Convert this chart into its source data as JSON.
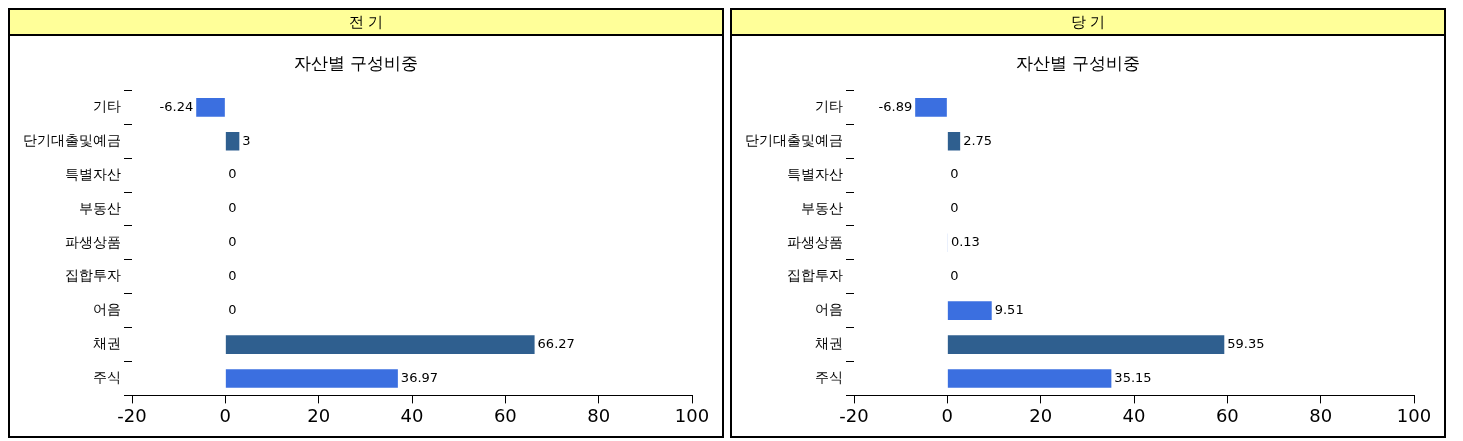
{
  "chart_data": [
    {
      "type": "bar",
      "orientation": "horizontal",
      "title": "전 기",
      "subtitle": "자산별 구성비중",
      "categories": [
        "기타",
        "단기대출및예금",
        "특별자산",
        "부동산",
        "파생상품",
        "집합투자",
        "어음",
        "채권",
        "주식"
      ],
      "values": [
        -6.24,
        3,
        0,
        0,
        0,
        0,
        0,
        66.27,
        36.97
      ],
      "colors": [
        "#3b6fe0",
        "#2f5f8f",
        "#3b6fe0",
        "#2f5f8f",
        "#3b6fe0",
        "#2f5f8f",
        "#3b6fe0",
        "#2f5f8f",
        "#3b6fe0"
      ],
      "xlim": [
        -20,
        100
      ],
      "xticks": [
        -20,
        0,
        20,
        40,
        60,
        80,
        100
      ],
      "grid": false,
      "legend": false,
      "data_labels": true
    },
    {
      "type": "bar",
      "orientation": "horizontal",
      "title": "당 기",
      "subtitle": "자산별 구성비중",
      "categories": [
        "기타",
        "단기대출및예금",
        "특별자산",
        "부동산",
        "파생상품",
        "집합투자",
        "어음",
        "채권",
        "주식"
      ],
      "values": [
        -6.89,
        2.75,
        0,
        0,
        0.13,
        0,
        9.51,
        59.35,
        35.15
      ],
      "colors": [
        "#3b6fe0",
        "#2f5f8f",
        "#3b6fe0",
        "#2f5f8f",
        "#3b6fe0",
        "#2f5f8f",
        "#3b6fe0",
        "#2f5f8f",
        "#3b6fe0"
      ],
      "xlim": [
        -20,
        100
      ],
      "xticks": [
        -20,
        0,
        20,
        40,
        60,
        80,
        100
      ],
      "grid": false,
      "legend": false,
      "data_labels": true
    }
  ]
}
